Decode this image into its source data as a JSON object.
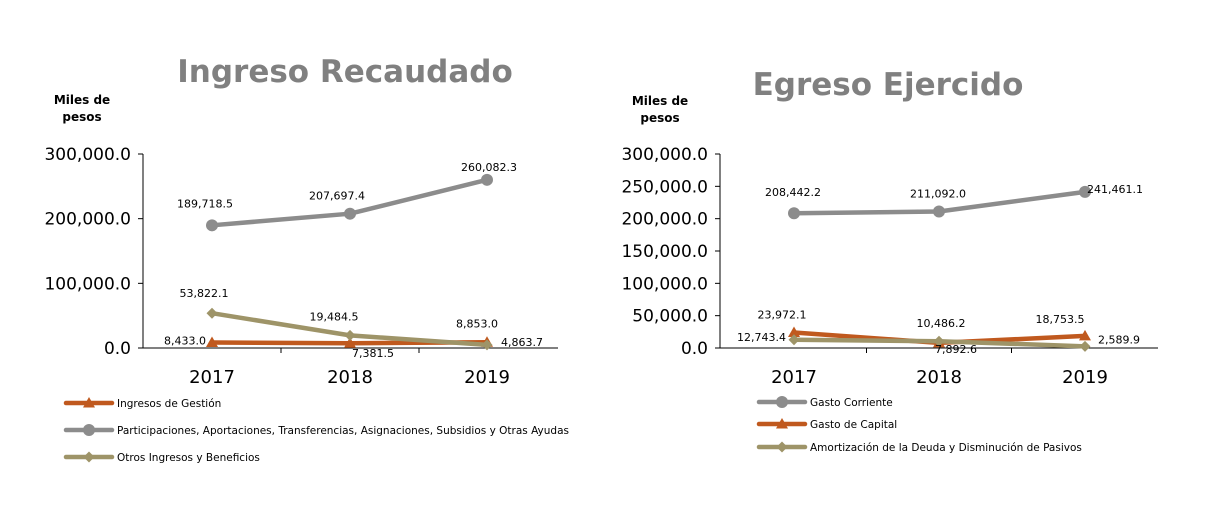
{
  "colors": {
    "gray": "#8c8c8c",
    "orange": "#c0591e",
    "olive": "#9e9468",
    "title": "#808080",
    "axis": "#000000"
  },
  "chart_data": [
    {
      "type": "line",
      "title": "Ingreso Recaudado",
      "ylabel": "Miles de pesos",
      "ylabel_lines": [
        "Miles de",
        "pesos"
      ],
      "categories": [
        "2017",
        "2018",
        "2019"
      ],
      "ylim": [
        0,
        300000
      ],
      "yticks": [
        0,
        100000,
        200000,
        300000
      ],
      "ytick_labels": [
        "0.0",
        "100,000.0",
        "200,000.0",
        "300,000.0"
      ],
      "grid": false,
      "legend_position": "bottom-left",
      "series": [
        {
          "name": "Ingresos de Gestión",
          "values": [
            8433.0,
            7381.5,
            8853.0
          ],
          "labels": [
            "8,433.0",
            "7,381.5",
            "8,853.0"
          ],
          "color": "#c0591e",
          "marker": "triangle"
        },
        {
          "name": "Participaciones, Aportaciones, Transferencias, Asignaciones, Subsidios y Otras Ayudas",
          "values": [
            189718.5,
            207697.4,
            260082.3
          ],
          "labels": [
            "189,718.5",
            "207,697.4",
            "260,082.3"
          ],
          "color": "#8c8c8c",
          "marker": "circle"
        },
        {
          "name": "Otros Ingresos y Beneficios",
          "values": [
            53822.1,
            19484.5,
            4863.7
          ],
          "labels": [
            "53,822.1",
            "19,484.5",
            "4,863.7"
          ],
          "color": "#9e9468",
          "marker": "diamond"
        }
      ]
    },
    {
      "type": "line",
      "title": "Egreso Ejercido",
      "ylabel": "Miles de pesos",
      "ylabel_lines": [
        "Miles de",
        "pesos"
      ],
      "categories": [
        "2017",
        "2018",
        "2019"
      ],
      "ylim": [
        0,
        300000
      ],
      "yticks": [
        0,
        50000,
        100000,
        150000,
        200000,
        250000,
        300000
      ],
      "ytick_labels": [
        "0.0",
        "50,000.0",
        "100,000.0",
        "150,000.0",
        "200,000.0",
        "250,000.0",
        "300,000.0"
      ],
      "grid": false,
      "legend_position": "bottom-left",
      "series": [
        {
          "name": "Gasto Corriente",
          "values": [
            208442.2,
            211092.0,
            241461.1
          ],
          "labels": [
            "208,442.2",
            "211,092.0",
            "241,461.1"
          ],
          "color": "#8c8c8c",
          "marker": "circle"
        },
        {
          "name": "Gasto de Capital",
          "values": [
            23972.1,
            7892.6,
            18753.5
          ],
          "labels": [
            "23,972.1",
            "7,892.6",
            "18,753.5"
          ],
          "color": "#c0591e",
          "marker": "triangle"
        },
        {
          "name": "Amortización de la Deuda y Disminución de Pasivos",
          "values": [
            12743.4,
            10486.2,
            2589.9
          ],
          "labels": [
            "12,743.4",
            "10,486.2",
            "2,589.9"
          ],
          "color": "#9e9468",
          "marker": "diamond"
        }
      ]
    }
  ]
}
